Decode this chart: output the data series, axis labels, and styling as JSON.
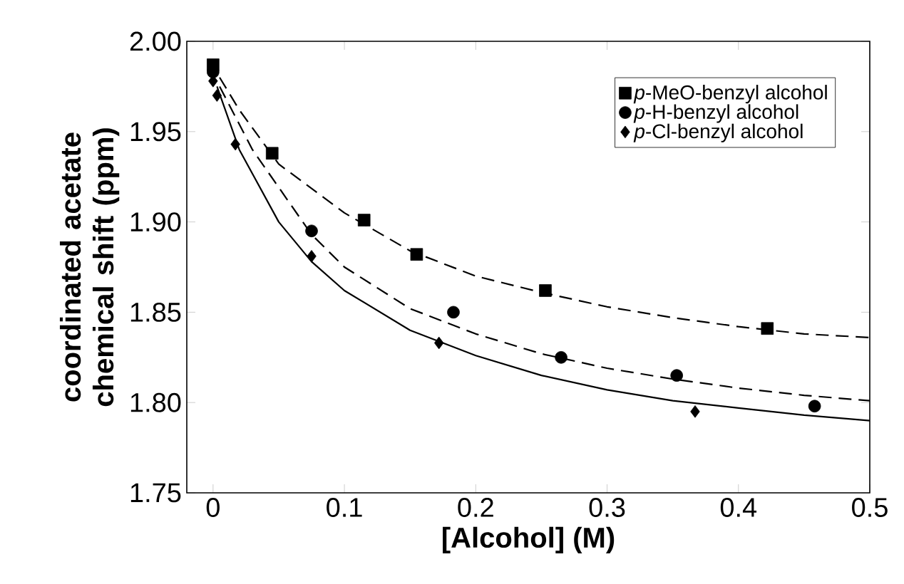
{
  "chart_data": {
    "type": "scatter",
    "xlabel": "[Alcohol] (M)",
    "ylabel": "coordinated acetate chemical shift (ppm)",
    "xlim": [
      -0.02,
      0.5
    ],
    "ylim": [
      1.75,
      2.0
    ],
    "xticks": [
      0,
      0.1,
      0.2,
      0.3,
      0.4,
      0.5
    ],
    "yticks": [
      1.75,
      {
        "value": 1.8,
        "label": "1.80"
      },
      1.85,
      {
        "value": 1.9,
        "label": "1.90"
      },
      1.95,
      {
        "value": 2.0,
        "label": "2.00"
      }
    ],
    "grid": false,
    "legend": "top right",
    "series": [
      {
        "name": "*p*-MeO-benzyl alcohol",
        "color": "#000000",
        "marker": "square",
        "x": [
          0,
          0.045,
          0.115,
          0.155,
          0.253,
          0.422
        ],
        "values": [
          1.987,
          1.938,
          1.901,
          1.882,
          1.862,
          1.841
        ]
      },
      {
        "name": "*p*-H-benzyl alcohol",
        "color": "#000000",
        "marker": "circle",
        "x": [
          0,
          0.075,
          0.183,
          0.265,
          0.353,
          0.458
        ],
        "values": [
          1.983,
          1.895,
          1.85,
          1.825,
          1.815,
          1.798
        ]
      },
      {
        "name": "*p*-Cl-benzyl alcohol",
        "color": "#000000",
        "marker": "diamond",
        "x": [
          0,
          0.003,
          0.017,
          0.075,
          0.172,
          0.367
        ],
        "values": [
          1.978,
          1.97,
          1.943,
          1.881,
          1.833,
          1.795
        ]
      },
      {
        "type": "line",
        "color": "#000000",
        "line_style": "dashed",
        "x": [
          0.005,
          0.02,
          0.05,
          0.1,
          0.15,
          0.2,
          0.25,
          0.3,
          0.35,
          0.4,
          0.45,
          0.5
        ],
        "values": [
          1.98,
          1.962,
          1.932,
          1.905,
          1.884,
          1.87,
          1.861,
          1.853,
          1.847,
          1.842,
          1.838,
          1.836
        ]
      },
      {
        "type": "line",
        "color": "#000000",
        "line_style": "dashed",
        "x": [
          0.005,
          0.03,
          0.075,
          0.1,
          0.15,
          0.2,
          0.25,
          0.3,
          0.35,
          0.4,
          0.45,
          0.5
        ],
        "values": [
          1.975,
          1.94,
          1.893,
          1.875,
          1.852,
          1.838,
          1.827,
          1.819,
          1.813,
          1.808,
          1.804,
          1.801
        ]
      },
      {
        "type": "line",
        "color": "#000000",
        "line_style": "solid",
        "x": [
          0.003,
          0.02,
          0.05,
          0.075,
          0.1,
          0.15,
          0.2,
          0.25,
          0.3,
          0.35,
          0.4,
          0.45,
          0.5
        ],
        "values": [
          1.975,
          1.94,
          1.9,
          1.878,
          1.862,
          1.84,
          1.826,
          1.815,
          1.807,
          1.801,
          1.797,
          1.793,
          1.79
        ]
      }
    ]
  }
}
